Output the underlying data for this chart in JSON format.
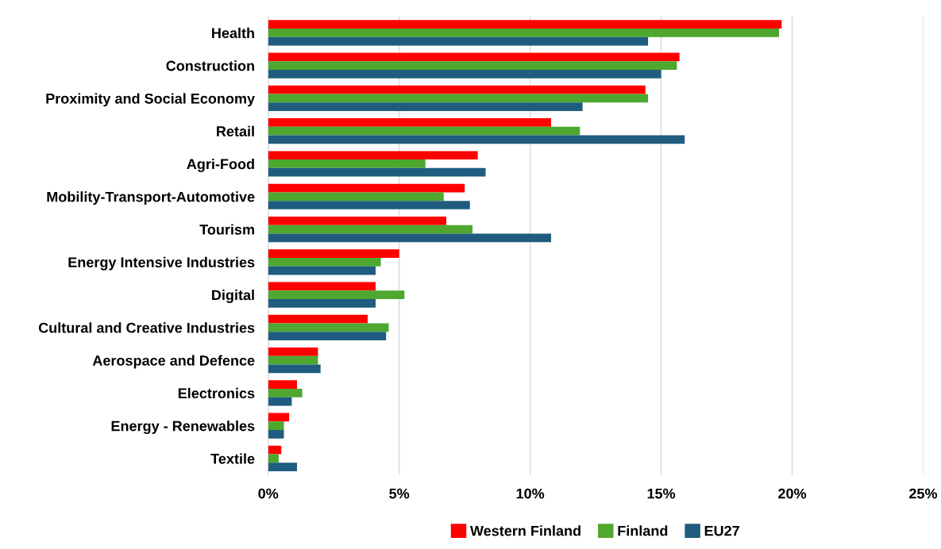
{
  "chart_data": {
    "type": "bar",
    "orientation": "horizontal",
    "categories": [
      "Health",
      "Construction",
      "Proximity and Social Economy",
      "Retail",
      "Agri-Food",
      "Mobility-Transport-Automotive",
      "Tourism",
      "Energy Intensive Industries",
      "Digital",
      "Cultural and Creative Industries",
      "Aerospace and Defence",
      "Electronics",
      "Energy - Renewables",
      "Textile"
    ],
    "series": [
      {
        "name": "Western Finland",
        "color": "#ff0000",
        "values": [
          19.6,
          15.7,
          14.4,
          10.8,
          8.0,
          7.5,
          6.8,
          5.0,
          4.1,
          3.8,
          1.9,
          1.1,
          0.8,
          0.5
        ]
      },
      {
        "name": "Finland",
        "color": "#4ea72e",
        "values": [
          19.5,
          15.6,
          14.5,
          11.9,
          6.0,
          6.7,
          7.8,
          4.3,
          5.2,
          4.6,
          1.9,
          1.3,
          0.6,
          0.4
        ]
      },
      {
        "name": "EU27",
        "color": "#1f5c7f",
        "values": [
          14.5,
          15.0,
          12.0,
          15.9,
          8.3,
          7.7,
          10.8,
          4.1,
          4.1,
          4.5,
          2.0,
          0.9,
          0.6,
          1.1
        ]
      }
    ],
    "xlim": [
      0,
      25
    ],
    "xticks": [
      {
        "value": 0,
        "label": "0%"
      },
      {
        "value": 5,
        "label": "5%"
      },
      {
        "value": 10,
        "label": "10%"
      },
      {
        "value": 15,
        "label": "15%"
      },
      {
        "value": 20,
        "label": "20%"
      },
      {
        "value": 25,
        "label": "25%"
      }
    ],
    "grid": "x",
    "legend": "bottom"
  }
}
